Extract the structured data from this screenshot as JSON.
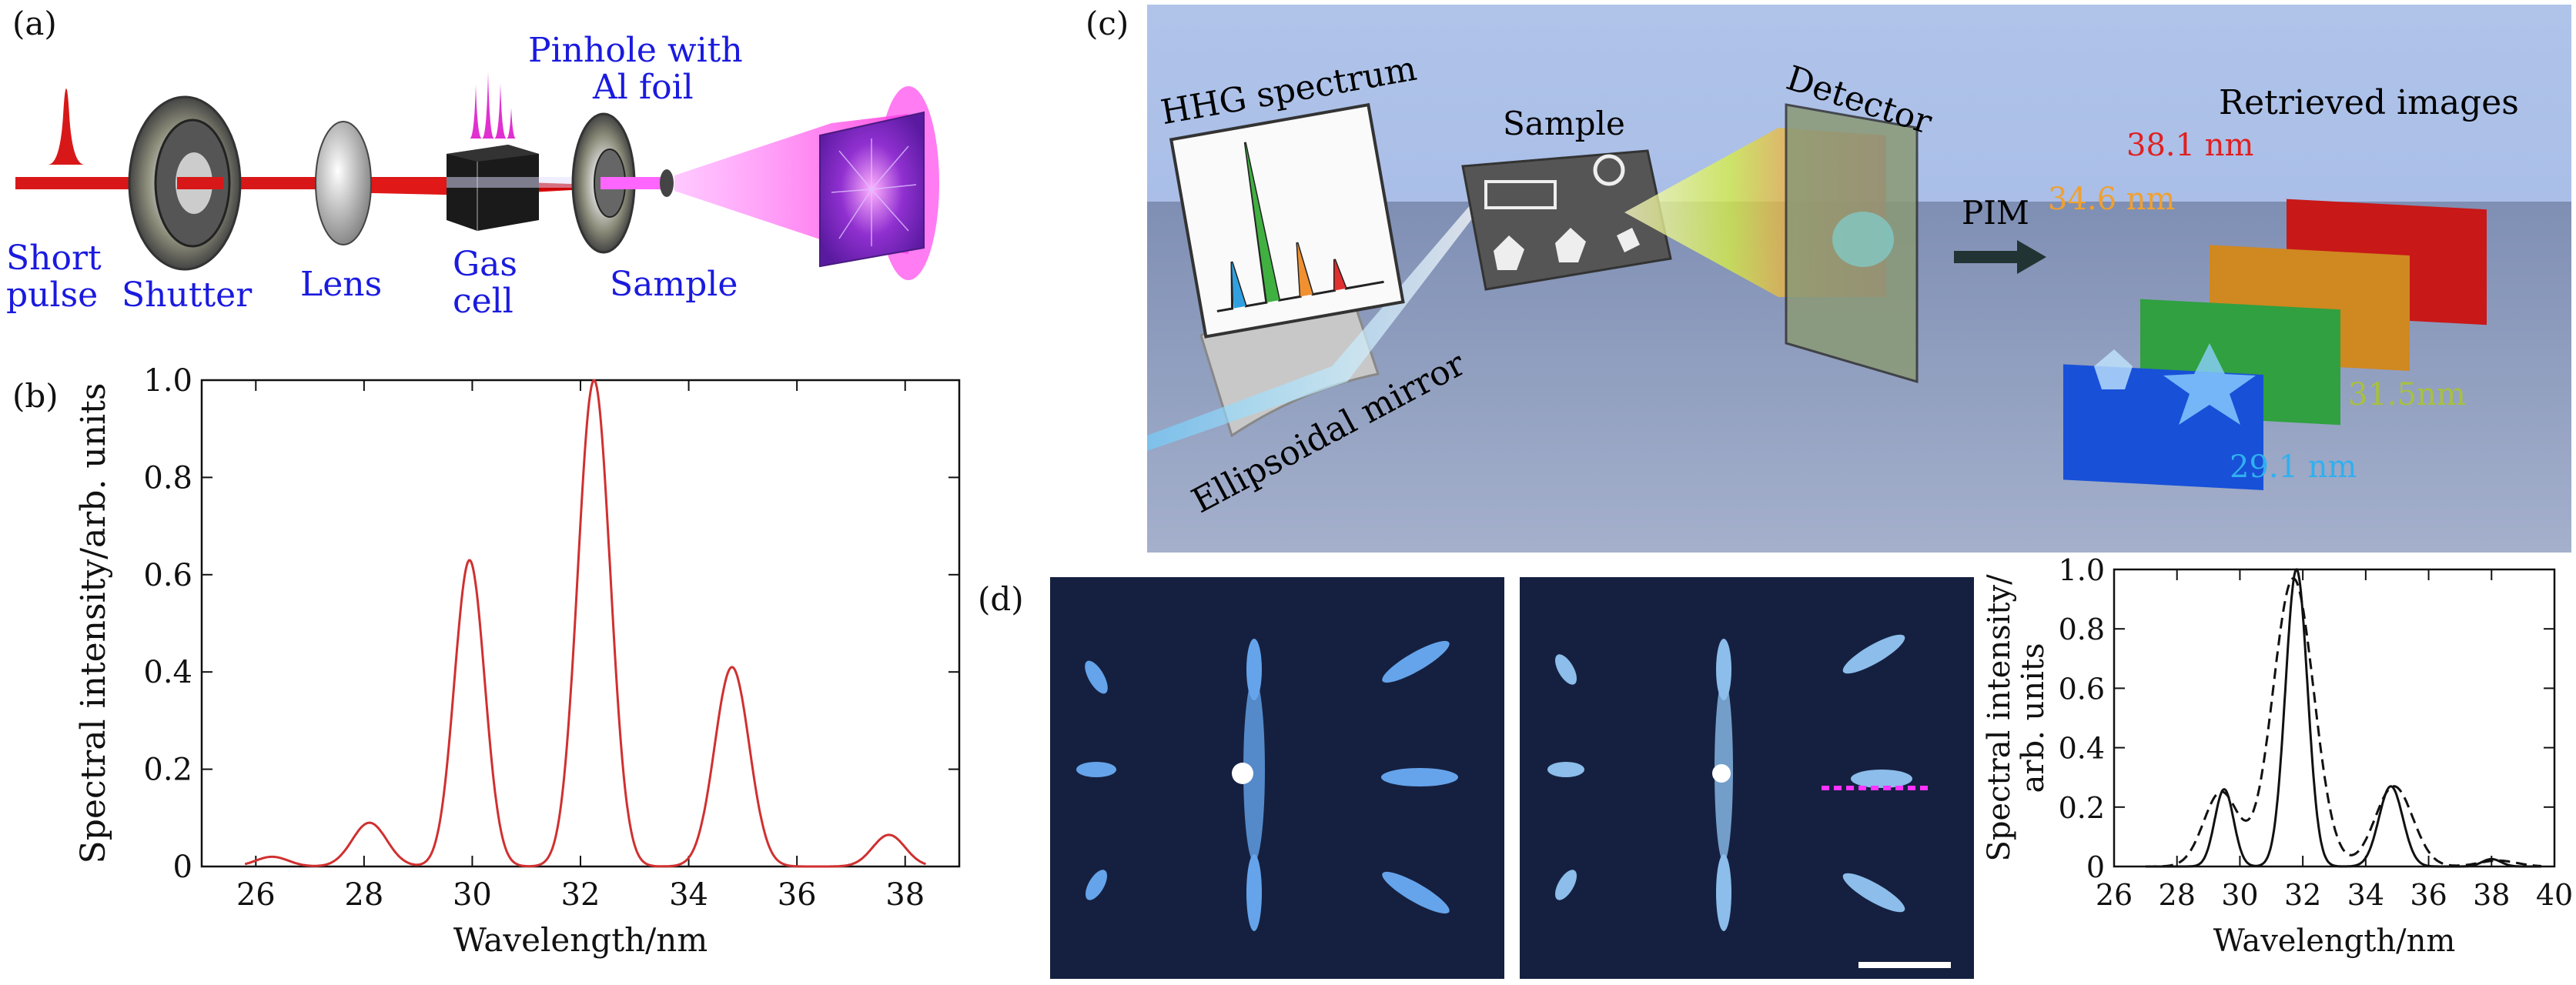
{
  "panel_labels": {
    "a": "(a)",
    "b": "(b)",
    "c": "(c)",
    "d": "(d)"
  },
  "panel_a": {
    "short_pulse_1": "Short",
    "short_pulse_2": "pulse",
    "shutter": "Shutter",
    "lens": "Lens",
    "gas_cell_1": "Gas",
    "gas_cell_2": "cell",
    "pinhole_1": "Pinhole with",
    "pinhole_2": "Al foil",
    "sample": "Sample"
  },
  "panel_c": {
    "hhg_spectrum": "HHG spectrum",
    "sample": "Sample",
    "detector": "Detector",
    "pim": "PIM",
    "retrieved": "Retrieved images",
    "ellipsoidal": "Ellipsoidal mirror",
    "wl_381": "38.1 nm",
    "wl_346": "34.6 nm",
    "wl_315": "31.5nm",
    "wl_291": "29.1 nm",
    "colors": {
      "wl_381": "#e02020",
      "wl_346": "#f0a030",
      "wl_315": "#a8c040",
      "wl_291": "#30b0f0"
    }
  },
  "chart_data": [
    {
      "type": "line",
      "panel": "b",
      "xlabel": "Wavelength/nm",
      "ylabel": "Spectral intensity/arb. units",
      "xlim": [
        25,
        39
      ],
      "ylim": [
        0,
        1.0
      ],
      "xticks": [
        26,
        28,
        30,
        32,
        34,
        36,
        38
      ],
      "yticks": [
        0,
        0.2,
        0.4,
        0.6,
        0.8,
        1.0
      ],
      "ytick_labels": [
        "0",
        "0.2",
        "0.4",
        "0.6",
        "0.8",
        "1.0"
      ],
      "color": "#d03030",
      "peaks": [
        {
          "x": 26.3,
          "y": 0.02,
          "w": 0.3
        },
        {
          "x": 28.1,
          "y": 0.09,
          "w": 0.32
        },
        {
          "x": 29.95,
          "y": 0.63,
          "w": 0.28
        },
        {
          "x": 32.25,
          "y": 1.0,
          "w": 0.3
        },
        {
          "x": 34.8,
          "y": 0.41,
          "w": 0.32
        },
        {
          "x": 37.7,
          "y": 0.065,
          "w": 0.3
        }
      ]
    },
    {
      "type": "line",
      "panel": "d",
      "xlabel": "Wavelength/nm",
      "ylabel_1": "Spectral intensity/",
      "ylabel_2": "arb. units",
      "xlim": [
        26,
        40
      ],
      "ylim": [
        0,
        1.0
      ],
      "xticks": [
        26,
        28,
        30,
        32,
        34,
        36,
        38,
        40
      ],
      "yticks": [
        0,
        0.2,
        0.4,
        0.6,
        0.8,
        1.0
      ],
      "ytick_labels": [
        "0",
        "0.2",
        "0.4",
        "0.6",
        "0.8",
        "1.0"
      ],
      "series": [
        {
          "style": "solid",
          "peaks": [
            {
              "x": 29.5,
              "y": 0.26,
              "w": 0.3
            },
            {
              "x": 31.8,
              "y": 1.0,
              "w": 0.35
            },
            {
              "x": 34.8,
              "y": 0.27,
              "w": 0.38
            },
            {
              "x": 38.0,
              "y": 0.025,
              "w": 0.3
            }
          ]
        },
        {
          "style": "dashed",
          "peaks": [
            {
              "x": 29.4,
              "y": 0.25,
              "w": 0.55
            },
            {
              "x": 31.7,
              "y": 0.97,
              "w": 0.65
            },
            {
              "x": 34.9,
              "y": 0.27,
              "w": 0.6
            },
            {
              "x": 38.2,
              "y": 0.02,
              "w": 0.6
            }
          ]
        }
      ]
    }
  ]
}
